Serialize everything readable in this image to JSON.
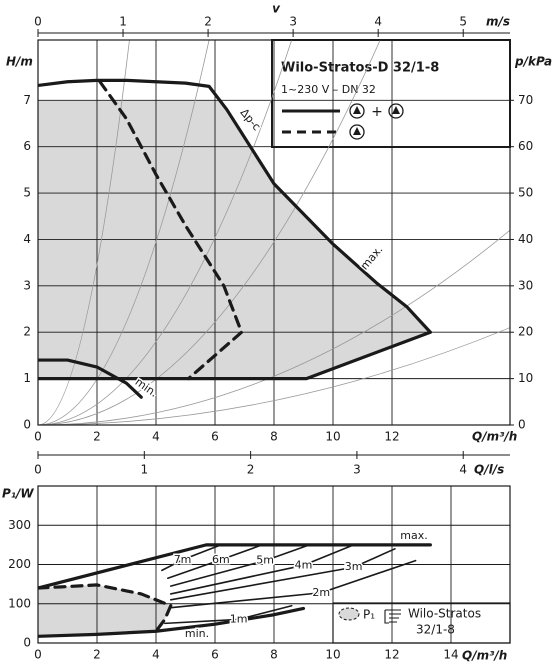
{
  "chart_data": [
    {
      "type": "line",
      "y_label": "H/m",
      "y2_label": "p/kPa",
      "x_label": "Q/m³/h",
      "x2_symbol": "v",
      "x2_label": "m/s",
      "xlim": [
        0,
        16
      ],
      "xticks": [
        0,
        2,
        4,
        6,
        8,
        10,
        12
      ],
      "ylim": [
        0,
        8.3
      ],
      "yticks": [
        0,
        1,
        2,
        3,
        4,
        5,
        6,
        7
      ],
      "y2lim": [
        0,
        83
      ],
      "y2ticks": [
        0,
        10,
        20,
        30,
        40,
        50,
        60,
        70
      ],
      "x2lim": [
        0,
        5.55
      ],
      "x2ticks": [
        0,
        1,
        2,
        3,
        4,
        5
      ],
      "grid": true,
      "color": "#1a1a1a",
      "shade_color": "#d9d9d9",
      "curve_color": "#9a9a9a",
      "shaded": {
        "x": [
          0,
          6.1,
          6.4,
          8,
          10,
          11.5,
          12.5,
          13.3,
          9.1,
          0
        ],
        "y": [
          7,
          7,
          6.8,
          5.2,
          3.9,
          3.05,
          2.55,
          2.0,
          1,
          1
        ]
      },
      "system_curves": {
        "x": [
          3.1,
          5.8,
          8.6,
          11.6,
          16,
          16
        ],
        "y": [
          8.3,
          8.3,
          8.3,
          8.3,
          4.2,
          2.1
        ]
      },
      "series": [
        {
          "style": "solid",
          "x": [
            0,
            1,
            2,
            3,
            4,
            5,
            5.8,
            6.4,
            8,
            10,
            11.5,
            12.5,
            13.3
          ],
          "y": [
            7.32,
            7.4,
            7.43,
            7.43,
            7.4,
            7.37,
            7.3,
            6.8,
            5.2,
            3.9,
            3.05,
            2.55,
            2.0
          ]
        },
        {
          "style": "solid",
          "x": [
            0,
            9.1,
            13.3
          ],
          "y": [
            1,
            1,
            2.0
          ]
        },
        {
          "style": "dashed",
          "x": [
            2.1,
            3,
            4,
            5,
            6.3,
            6.9,
            6,
            5.1
          ],
          "y": [
            7.4,
            6.6,
            5.4,
            4.3,
            3.0,
            2.0,
            1.5,
            1.0
          ]
        },
        {
          "style": "solid",
          "x": [
            0,
            1,
            2,
            3,
            3.5
          ],
          "y": [
            1.4,
            1.4,
            1.25,
            0.9,
            0.6
          ]
        }
      ],
      "annotations": [
        "Δp-c",
        "max.",
        "min."
      ],
      "legend": {
        "title": "Wilo-Stratos-D 32/1-8",
        "subtitle": "1~230 V – DN 32",
        "plus": "+"
      }
    },
    {
      "type": "line",
      "y_label": "P₁/W",
      "x_label": "Q/m³/h",
      "x2_label": "Q/l/s",
      "xlim": [
        0,
        16
      ],
      "xticks": [
        0,
        2,
        4,
        6,
        8,
        10,
        12,
        14
      ],
      "ylim": [
        0,
        400
      ],
      "yticks": [
        0,
        100,
        200,
        300
      ],
      "x2lim": [
        0,
        4.44
      ],
      "x2ticks": [
        0,
        1,
        2,
        3,
        4
      ],
      "grid": true,
      "color": "#1a1a1a",
      "shade_color": "#d9d9d9",
      "curve_color": "#1a1a1a",
      "shaded": {
        "x": [
          0,
          0.8,
          2,
          3.5,
          4.5,
          4.3,
          4,
          2,
          0
        ],
        "y": [
          140,
          143,
          148,
          125,
          95,
          60,
          30,
          22,
          17
        ]
      },
      "series": [
        {
          "style": "solid",
          "x": [
            0,
            5.7,
            13.3
          ],
          "y": [
            140,
            250,
            250
          ]
        },
        {
          "style": "solid",
          "x": [
            0,
            2,
            4,
            6,
            8,
            9
          ],
          "y": [
            17,
            22,
            30,
            48,
            72,
            88
          ]
        },
        {
          "style": "dashed",
          "x": [
            0,
            0.8,
            2,
            3.5,
            4.5,
            4.3,
            4
          ],
          "y": [
            140,
            143,
            148,
            125,
            95,
            60,
            30
          ]
        }
      ],
      "head_curves": [
        {
          "label": "7m",
          "x": [
            4.2,
            4.9,
            6.2
          ],
          "y": [
            185,
            212,
            250
          ]
        },
        {
          "label": "6m",
          "x": [
            4.4,
            6.2,
            7.6
          ],
          "y": [
            165,
            212,
            250
          ]
        },
        {
          "label": "5m",
          "x": [
            4.5,
            7.7,
            9.2
          ],
          "y": [
            145,
            210,
            250
          ]
        },
        {
          "label": "4m",
          "x": [
            4.5,
            9,
            10.7
          ],
          "y": [
            125,
            198,
            250
          ]
        },
        {
          "label": "3m",
          "x": [
            4.5,
            10.7,
            12.1
          ],
          "y": [
            110,
            193,
            240
          ]
        },
        {
          "label": "2m",
          "x": [
            4.5,
            9.6,
            12.8
          ],
          "y": [
            90,
            128,
            210
          ]
        },
        {
          "label": "1m",
          "x": [
            4.3,
            6.8,
            8.6
          ],
          "y": [
            50,
            60,
            95
          ]
        }
      ],
      "annotations": [
        "max.",
        "min."
      ],
      "legend": {
        "swatch": "P₁",
        "lines": [
          "Wilo-Stratos",
          "32/1-8"
        ]
      }
    }
  ]
}
